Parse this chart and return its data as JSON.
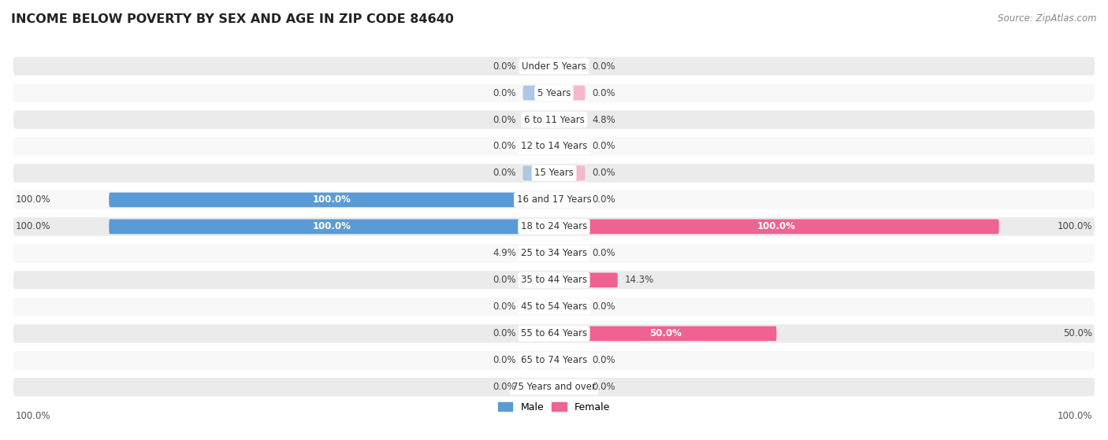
{
  "title": "INCOME BELOW POVERTY BY SEX AND AGE IN ZIP CODE 84640",
  "source": "Source: ZipAtlas.com",
  "categories": [
    "Under 5 Years",
    "5 Years",
    "6 to 11 Years",
    "12 to 14 Years",
    "15 Years",
    "16 and 17 Years",
    "18 to 24 Years",
    "25 to 34 Years",
    "35 to 44 Years",
    "45 to 54 Years",
    "55 to 64 Years",
    "65 to 74 Years",
    "75 Years and over"
  ],
  "male": [
    0.0,
    0.0,
    0.0,
    0.0,
    0.0,
    100.0,
    100.0,
    4.9,
    0.0,
    0.0,
    0.0,
    0.0,
    0.0
  ],
  "female": [
    0.0,
    0.0,
    4.8,
    0.0,
    0.0,
    0.0,
    100.0,
    0.0,
    14.3,
    0.0,
    50.0,
    0.0,
    0.0
  ],
  "male_color": "#5b9bd5",
  "female_color": "#f06292",
  "male_color_light": "#aec6e8",
  "female_color_light": "#f4b8cb",
  "row_bg_color": "#ebebeb",
  "row_bg_alt": "#f8f8f8",
  "title_fontsize": 11.5,
  "label_fontsize": 8.5,
  "tick_fontsize": 8.5,
  "source_fontsize": 8.5
}
